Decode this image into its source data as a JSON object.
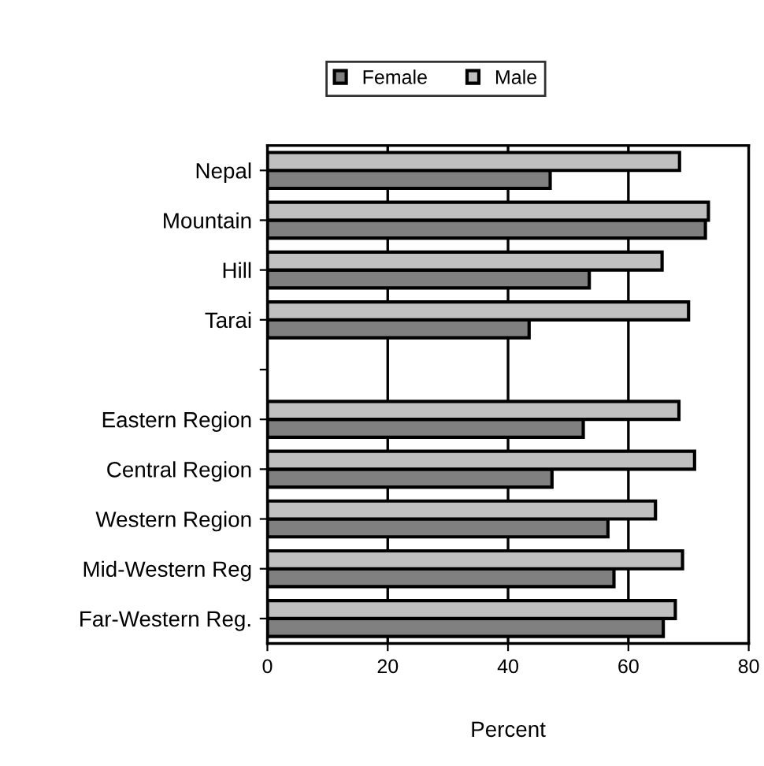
{
  "chart_data": {
    "type": "bar",
    "orientation": "horizontal",
    "xlabel": "Percent",
    "categories": [
      "Nepal",
      "Mountain",
      "Hill",
      "Tarai",
      null,
      "Eastern Region",
      "Central Region",
      "Western Region",
      "Mid-Western Reg",
      "Far-Western Reg."
    ],
    "series": [
      {
        "name": "Female",
        "color": "#808080",
        "values": [
          47,
          72.8,
          53.5,
          43.5,
          null,
          52.5,
          47.3,
          56.6,
          57.6,
          65.8
        ]
      },
      {
        "name": "Male",
        "color": "#c0c0c0",
        "values": [
          68.5,
          73.3,
          65.6,
          70,
          null,
          68.4,
          71,
          64.5,
          69,
          67.8
        ]
      }
    ],
    "xlim": [
      0,
      80
    ],
    "xticks": [
      0,
      20,
      40,
      60,
      80
    ],
    "grid": "x",
    "legend": "top"
  }
}
